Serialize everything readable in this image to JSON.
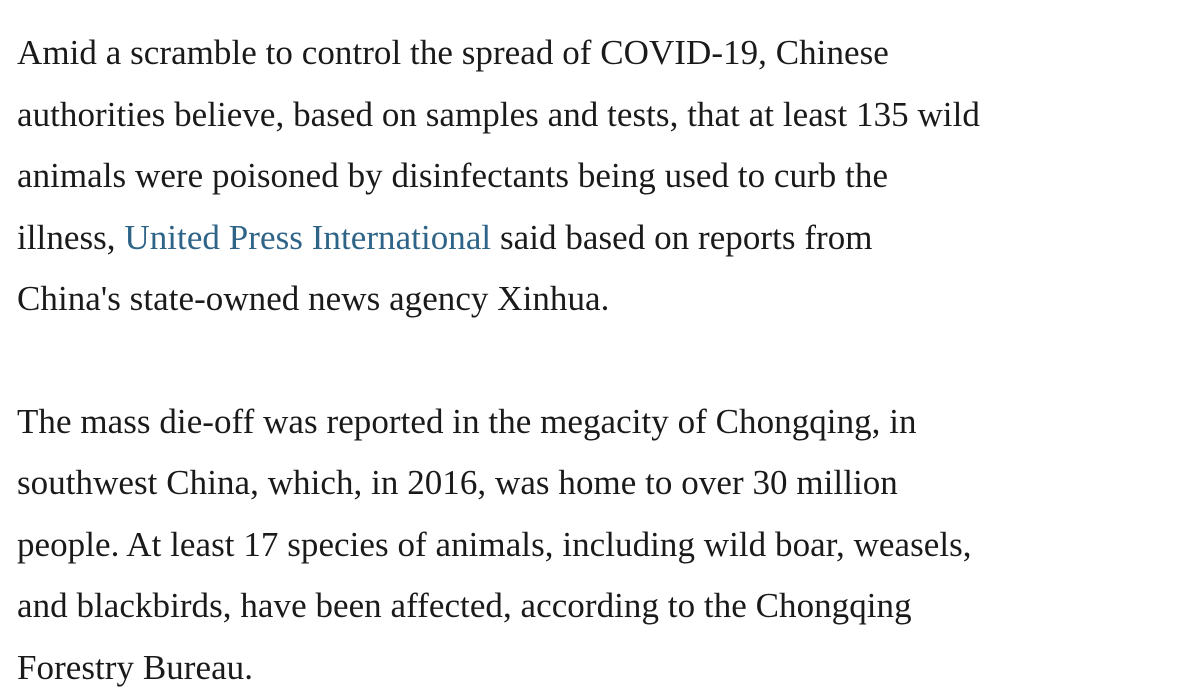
{
  "article": {
    "paragraph1": {
      "line1": "Amid a scramble to control the spread of COVID-19, Chinese",
      "line2": "authorities believe, based on samples and tests, that at least 135 wild",
      "line3": "animals were poisoned by disinfectants being used to curb the",
      "line4_before_link": "illness, ",
      "link_text": "United Press International",
      "line4_after_link": " said based on reports from",
      "line5": "China's state-owned news agency Xinhua."
    },
    "paragraph2": {
      "line1": "The mass die-off was reported in the megacity of Chongqing, in",
      "line2": "southwest China, which, in 2016, was home to over 30 million",
      "line3": "people. At least 17 species of animals, including wild boar, weasels,",
      "line4": "and blackbirds, have been affected, according to the Chongqing",
      "line5": "Forestry Bureau."
    }
  },
  "colors": {
    "text": "#1a1a1a",
    "link": "#2e6487",
    "background": "#ffffff"
  }
}
